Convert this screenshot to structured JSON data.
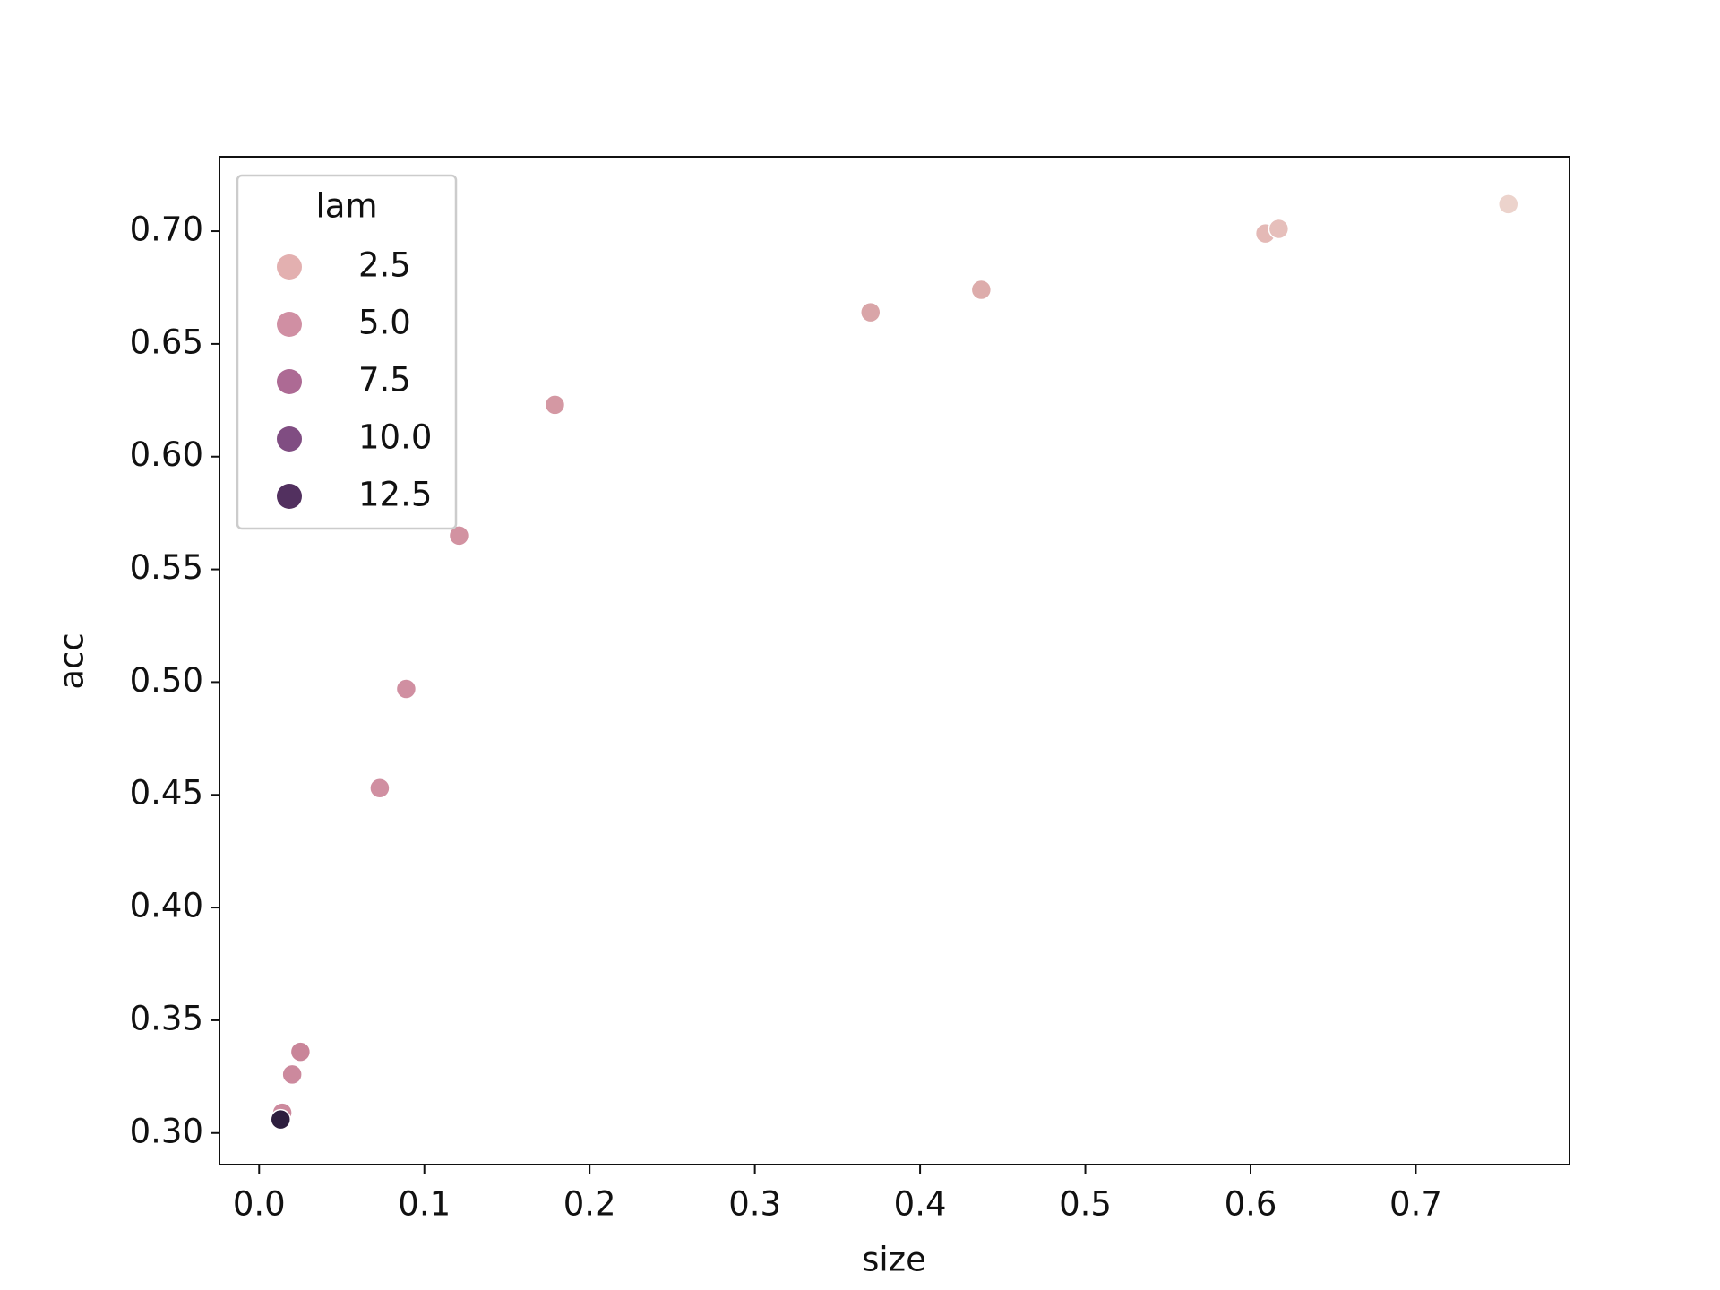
{
  "chart_data": {
    "type": "scatter",
    "x_label": "size",
    "y_label": "acc",
    "series": [
      {
        "x": [
          0.756,
          0.609,
          0.617,
          0.437,
          0.37,
          0.179,
          0.121,
          0.089,
          0.073,
          0.025,
          0.02,
          0.014,
          0.013
        ],
        "values": [
          0.712,
          0.699,
          0.701,
          0.674,
          0.664,
          0.623,
          0.565,
          0.497,
          0.453,
          0.336,
          0.326,
          0.309,
          0.306
        ],
        "colors": [
          "#ecd3cc",
          "#e4b9b6",
          "#e6bfbb",
          "#ddacab",
          "#d9a5a8",
          "#d498a3",
          "#d292a1",
          "#d08fa1",
          "#d08fa1",
          "#c98599",
          "#cc899d",
          "#cc899d",
          "#2d1e3e"
        ]
      }
    ],
    "legend": {
      "title": "lam",
      "labels": [
        2.5,
        {
          "value": 5,
          "label": "5.0"
        },
        7.5,
        {
          "value": 10,
          "label": "10.0"
        },
        12.5
      ],
      "colors": [
        "#e3b0b0",
        "#d08fa3",
        "#ad6a94",
        "#804d82",
        "#52305f"
      ]
    },
    "xlim": [
      -0.024,
      0.793
    ],
    "xticks": [
      {
        "value": 0,
        "label": "0.0"
      },
      0.1,
      0.2,
      0.3,
      0.4,
      0.5,
      0.6,
      0.7
    ],
    "ylim": [
      0.286,
      0.733
    ],
    "yticks": [
      {
        "value": 0.3,
        "label": "0.30"
      },
      0.35,
      {
        "value": 0.4,
        "label": "0.40"
      },
      0.45,
      {
        "value": 0.5,
        "label": "0.50"
      },
      0.55,
      {
        "value": 0.6,
        "label": "0.60"
      },
      0.65,
      {
        "value": 0.7,
        "label": "0.70"
      }
    ],
    "grid": false
  }
}
